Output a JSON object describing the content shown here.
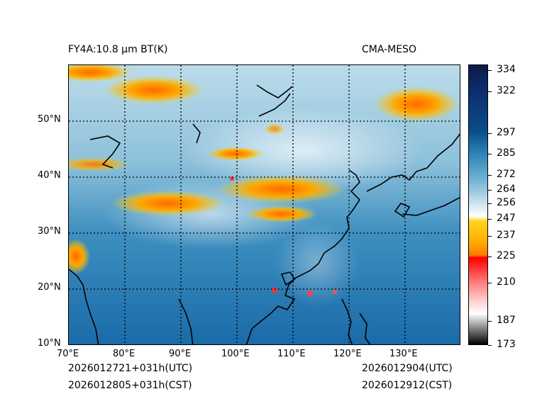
{
  "map": {
    "title_left": "FY4A:10.8 µm BT(K)",
    "title_right": "CMA-MESO",
    "x_ticks": [
      "70°E",
      "80°E",
      "90°E",
      "100°E",
      "110°E",
      "120°E",
      "130°E"
    ],
    "y_ticks": [
      "50°N",
      "40°N",
      "30°N",
      "20°N",
      "10°N"
    ],
    "footer": {
      "init_utc": "2026012721+031h(UTC)",
      "init_cst": "2026012805+031h(CST)",
      "valid_utc": "2026012904(UTC)",
      "valid_cst": "2026012912(CST)"
    }
  },
  "colorbar": {
    "labels": [
      "334",
      "322",
      "297",
      "285",
      "272",
      "264",
      "256",
      "247",
      "237",
      "225",
      "210",
      "187",
      "173"
    ],
    "values": [
      334,
      322,
      297,
      285,
      272,
      264,
      256,
      247,
      237,
      225,
      210,
      187,
      173
    ],
    "min": 173,
    "max": 338,
    "colors": {
      "dark_navy": "#0b1a4a",
      "deep_blue": "#0b4f8a",
      "steel_blue": "#2f86b8",
      "light_blue": "#9ac8de",
      "pale": "#eaf3f7",
      "yellow": "#ffd21e",
      "orange": "#ff8a00",
      "red": "#ff0000",
      "pink": "#ffc0c0",
      "black": "#000000"
    }
  }
}
